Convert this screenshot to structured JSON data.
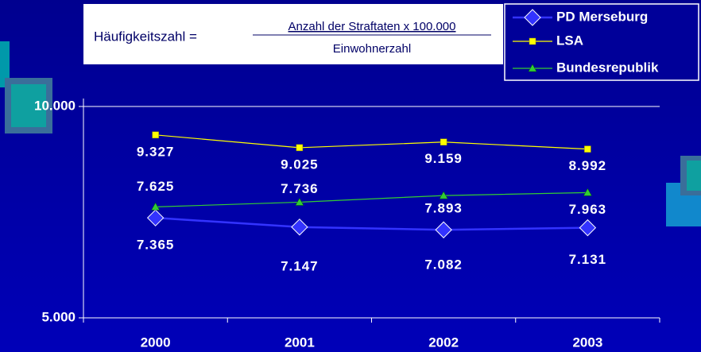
{
  "chart_data": {
    "type": "line",
    "formula": {
      "left": "Häufigkeitszahl =",
      "numerator": "Anzahl der Straftaten x 100.000",
      "denominator": "Einwohnerzahl"
    },
    "categories": [
      "2000",
      "2001",
      "2002",
      "2003"
    ],
    "series": [
      {
        "name": "PD Merseburg",
        "color": "#3333ff",
        "marker": "diamond",
        "values": [
          7365,
          7147,
          7082,
          7131
        ],
        "value_labels": [
          "7.365",
          "7.147",
          "7.082",
          "7.131"
        ]
      },
      {
        "name": "LSA",
        "color": "#ffff00",
        "marker": "square",
        "values": [
          9327,
          9025,
          9159,
          8992
        ],
        "value_labels": [
          "9.327",
          "9.025",
          "9.159",
          "8.992"
        ]
      },
      {
        "name": "Bundesrepublik",
        "color": "#33cc33",
        "marker": "triangle",
        "values": [
          7625,
          7736,
          7893,
          7963
        ],
        "value_labels": [
          "7.625",
          "7.736",
          "7.893",
          "7.963"
        ]
      }
    ],
    "ylim": [
      5000,
      10000
    ],
    "yticks": [
      {
        "value": 5000,
        "label": "5.000"
      },
      {
        "value": 10000,
        "label": "10.000"
      }
    ],
    "grid": true
  }
}
